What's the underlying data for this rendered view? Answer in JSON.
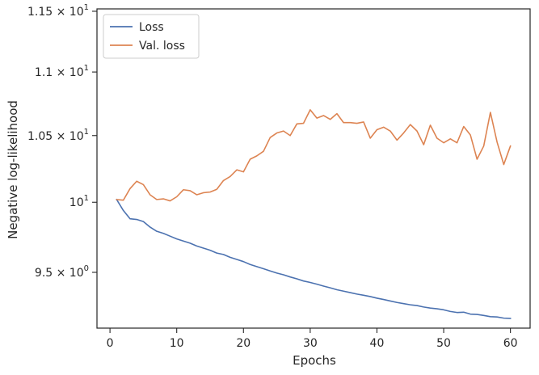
{
  "chart_data": {
    "type": "line",
    "title": "",
    "xlabel": "Epochs",
    "ylabel": "Negative log-likelihood",
    "yscale": "log",
    "xlim": [
      -1.95,
      62.95
    ],
    "ylim": [
      9.12,
      11.52
    ],
    "grid": false,
    "legend_position": "top-left",
    "xticks": [
      0,
      10,
      20,
      30,
      40,
      50,
      60
    ],
    "xtick_labels": [
      "0",
      "10",
      "20",
      "30",
      "40",
      "50",
      "60"
    ],
    "yticks": [
      9.5,
      10,
      10.5,
      11,
      11.5
    ],
    "ytick_labels": [
      [
        "9.5",
        "×",
        "10",
        "0"
      ],
      [
        "10",
        "",
        "",
        "1"
      ],
      [
        "1.05",
        "×",
        "10",
        "1"
      ],
      [
        "1.1",
        "×",
        "10",
        "1"
      ],
      [
        "1.15",
        "×",
        "10",
        "1"
      ]
    ],
    "x": [
      1,
      2,
      3,
      4,
      5,
      6,
      7,
      8,
      9,
      10,
      11,
      12,
      13,
      14,
      15,
      16,
      17,
      18,
      19,
      20,
      21,
      22,
      23,
      24,
      25,
      26,
      27,
      28,
      29,
      30,
      31,
      32,
      33,
      34,
      35,
      36,
      37,
      38,
      39,
      40,
      41,
      42,
      43,
      44,
      45,
      46,
      47,
      48,
      49,
      50,
      51,
      52,
      53,
      54,
      55,
      56,
      57,
      58,
      59,
      60
    ],
    "series": [
      {
        "name": "Loss",
        "color": "#4c72b0",
        "values": [
          10.02,
          9.94,
          9.88,
          9.875,
          9.86,
          9.82,
          9.79,
          9.775,
          9.755,
          9.735,
          9.72,
          9.705,
          9.685,
          9.67,
          9.655,
          9.635,
          9.625,
          9.605,
          9.59,
          9.575,
          9.555,
          9.54,
          9.525,
          9.51,
          9.495,
          9.483,
          9.468,
          9.455,
          9.44,
          9.43,
          9.418,
          9.405,
          9.393,
          9.38,
          9.37,
          9.36,
          9.35,
          9.342,
          9.333,
          9.322,
          9.313,
          9.303,
          9.293,
          9.285,
          9.277,
          9.272,
          9.262,
          9.255,
          9.25,
          9.243,
          9.232,
          9.225,
          9.227,
          9.214,
          9.212,
          9.205,
          9.197,
          9.195,
          9.187,
          9.185
        ]
      },
      {
        "name": "Val. loss",
        "color": "#dd8452",
        "values": [
          10.02,
          10.015,
          10.1,
          10.155,
          10.13,
          10.055,
          10.02,
          10.025,
          10.01,
          10.04,
          10.092,
          10.085,
          10.055,
          10.07,
          10.075,
          10.095,
          10.16,
          10.19,
          10.24,
          10.225,
          10.32,
          10.345,
          10.38,
          10.485,
          10.52,
          10.535,
          10.5,
          10.59,
          10.595,
          10.7,
          10.635,
          10.655,
          10.625,
          10.67,
          10.6,
          10.6,
          10.595,
          10.605,
          10.48,
          10.545,
          10.565,
          10.535,
          10.465,
          10.52,
          10.585,
          10.535,
          10.43,
          10.58,
          10.48,
          10.445,
          10.475,
          10.445,
          10.57,
          10.505,
          10.32,
          10.42,
          10.68,
          10.45,
          10.28,
          10.42
        ]
      }
    ]
  }
}
